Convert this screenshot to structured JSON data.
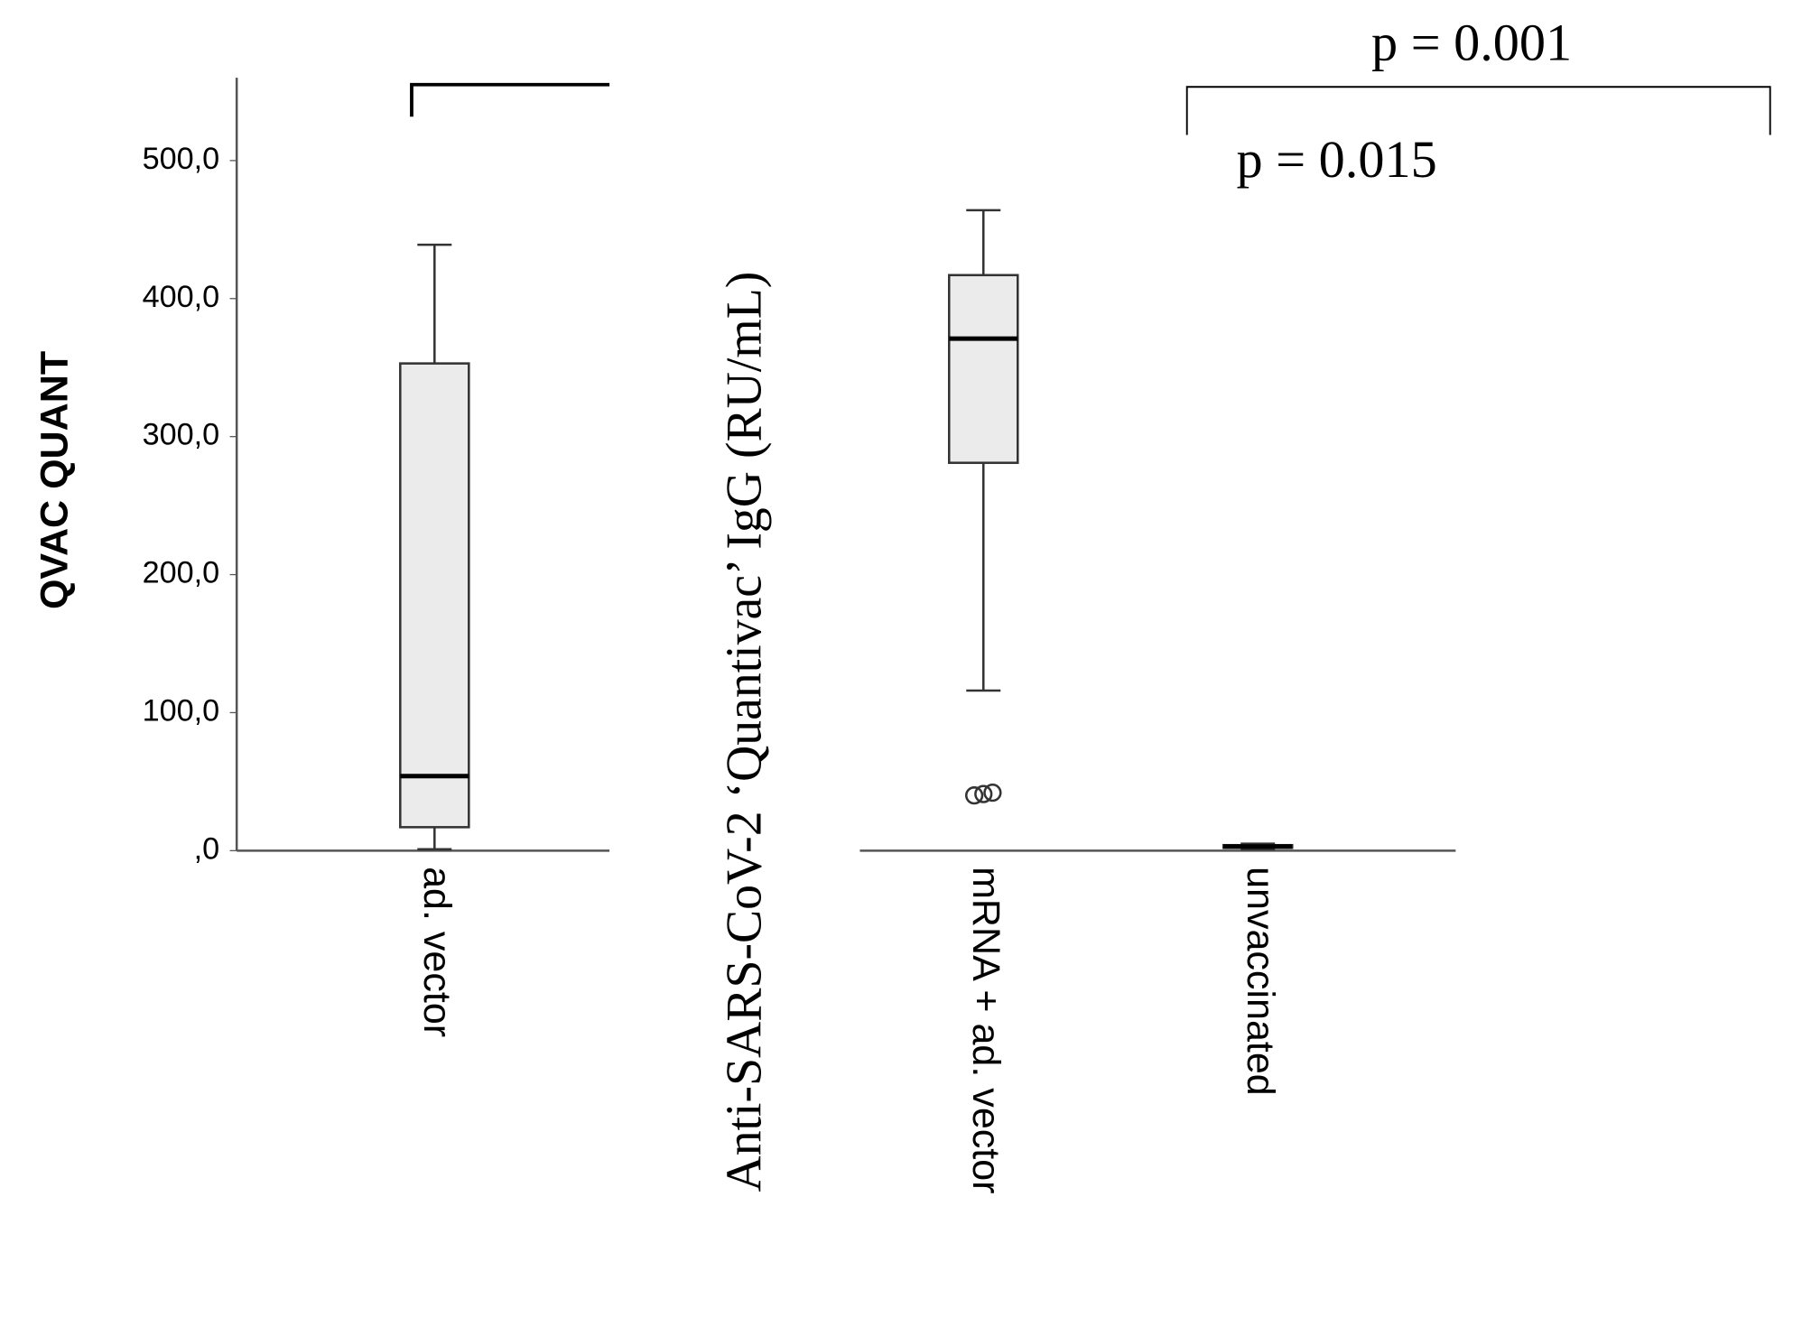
{
  "chart_data": {
    "type": "box",
    "y_label": "QVAC QUANT",
    "overlay_label": "Anti-SARS-CoV-2 ‘Quantivac’ IgG (RU/mL)",
    "annotations": [
      "p = 0.001",
      "p = 0.015"
    ],
    "categories": [
      "ad. vector",
      "mRNA + ad. vector",
      "unvaccinated"
    ],
    "boxes": [
      {
        "min": 1,
        "q1": 17,
        "median": 54,
        "q3": 353,
        "max": 439,
        "outliers": []
      },
      {
        "min": 116,
        "q1": 281,
        "median": 371,
        "q3": 417,
        "max": 464,
        "outliers": [
          40,
          41,
          42
        ]
      },
      {
        "min": 1,
        "q1": 2,
        "median": 3,
        "q3": 4,
        "max": 5,
        "outliers": []
      }
    ],
    "color": "#ebebeb",
    "ylim": [
      0,
      560
    ],
    "yticks": [
      {
        "value": 0,
        "label": ",0"
      },
      {
        "value": 100,
        "label": "100,0"
      },
      {
        "value": 200,
        "label": "200,0"
      },
      {
        "value": 300,
        "label": "300,0"
      },
      {
        "value": 400,
        "label": "400,0"
      },
      {
        "value": 500,
        "label": "500,0"
      }
    ],
    "grid": false
  }
}
